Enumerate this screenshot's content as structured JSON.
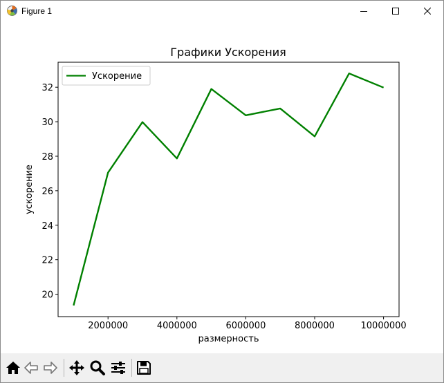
{
  "window": {
    "title": "Figure 1",
    "controls": [
      "minimize",
      "maximize",
      "close"
    ]
  },
  "toolbar": {
    "items": [
      "home-icon",
      "back-arrow-icon",
      "forward-arrow-icon",
      "pan-move-icon",
      "zoom-magnifier-icon",
      "configure-subplots-icon",
      "save-floppy-icon"
    ]
  },
  "chart_data": {
    "type": "line",
    "title": "Графики Ускорения",
    "xlabel": "размерность",
    "ylabel": "ускорение",
    "x": [
      1000000,
      2000000,
      3000000,
      4000000,
      5000000,
      6000000,
      7000000,
      8000000,
      9000000,
      10000000
    ],
    "series": [
      {
        "name": "Ускорение",
        "color": "#008000",
        "values": [
          19.35,
          27.05,
          29.98,
          27.87,
          31.9,
          30.37,
          30.77,
          29.15,
          32.8,
          31.98
        ]
      }
    ],
    "xlim": [
      550000,
      10450000
    ],
    "ylim": [
      18.7,
      33.45
    ],
    "xticks": [
      2000000,
      4000000,
      6000000,
      8000000,
      10000000
    ],
    "xtick_labels": [
      "2000000",
      "4000000",
      "6000000",
      "8000000",
      "10000000"
    ],
    "yticks": [
      20,
      22,
      24,
      26,
      28,
      30,
      32
    ],
    "ytick_labels": [
      "20",
      "22",
      "24",
      "26",
      "28",
      "30",
      "32"
    ],
    "legend_position": "upper-left",
    "grid": false
  }
}
